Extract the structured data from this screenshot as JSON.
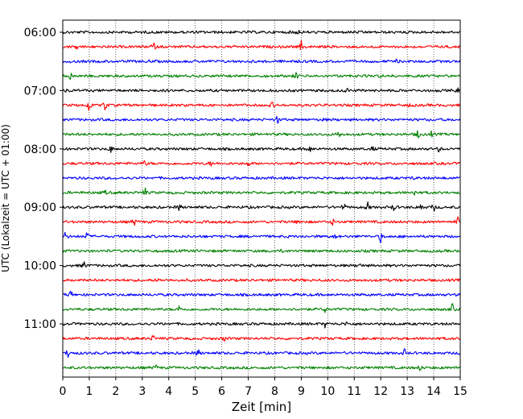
{
  "chart_data": {
    "type": "line",
    "title": "",
    "xlabel": "Zeit  [min]",
    "ylabel": "UTC (Lokalzeit = UTC + 01:00)",
    "xlim": [
      0,
      15
    ],
    "x_ticks": [
      0,
      1,
      2,
      3,
      4,
      5,
      6,
      7,
      8,
      9,
      10,
      11,
      12,
      13,
      14,
      15
    ],
    "x_tick_labels": [
      "0",
      "1",
      "2",
      "3",
      "4",
      "5",
      "6",
      "7",
      "8",
      "9",
      "10",
      "11",
      "12",
      "13",
      "14",
      "15"
    ],
    "grid": "vertical dotted",
    "trace_start_hour": 6.0,
    "trace_interval_min": 15,
    "y_tick_hours": [
      6,
      7,
      8,
      9,
      10,
      11
    ],
    "y_tick_labels": [
      "06:00",
      "07:00",
      "08:00",
      "09:00",
      "10:00",
      "11:00"
    ],
    "trace_colors": [
      "#000000",
      "#ff0000",
      "#0000ff",
      "#008000"
    ],
    "traces": [
      {
        "time": "06:00",
        "color": "#000000",
        "events": [
          [
            8.7,
            0.25
          ],
          [
            8.9,
            0.25
          ],
          [
            11.4,
            0.15
          ]
        ]
      },
      {
        "time": "06:15",
        "color": "#ff0000",
        "events": [
          [
            0.55,
            0.35
          ],
          [
            3.4,
            0.9
          ],
          [
            9.0,
            0.55
          ]
        ]
      },
      {
        "time": "06:30",
        "color": "#0000ff",
        "events": [
          [
            3.3,
            0.15
          ],
          [
            12.6,
            0.15
          ]
        ]
      },
      {
        "time": "06:45",
        "color": "#008000",
        "events": [
          [
            0.3,
            0.45
          ],
          [
            8.8,
            0.45
          ],
          [
            12.0,
            0.15
          ]
        ]
      },
      {
        "time": "07:00",
        "color": "#000000",
        "events": [
          [
            0.2,
            0.25
          ],
          [
            10.7,
            0.35
          ],
          [
            14.9,
            0.3
          ]
        ]
      },
      {
        "time": "07:15",
        "color": "#ff0000",
        "events": [
          [
            1.0,
            0.85
          ],
          [
            1.6,
            0.8
          ],
          [
            7.9,
            0.35
          ],
          [
            13.1,
            0.2
          ]
        ]
      },
      {
        "time": "07:30",
        "color": "#0000ff",
        "events": [
          [
            8.1,
            0.5
          ],
          [
            9.8,
            0.15
          ]
        ]
      },
      {
        "time": "07:45",
        "color": "#008000",
        "events": [
          [
            10.4,
            0.45
          ],
          [
            13.4,
            0.55
          ],
          [
            13.9,
            0.3
          ]
        ]
      },
      {
        "time": "08:00",
        "color": "#000000",
        "events": [
          [
            1.8,
            0.5
          ],
          [
            9.3,
            0.6
          ],
          [
            11.7,
            0.3
          ],
          [
            14.2,
            0.3
          ]
        ]
      },
      {
        "time": "08:15",
        "color": "#ff0000",
        "events": [
          [
            3.1,
            0.35
          ],
          [
            5.6,
            0.25
          ],
          [
            7.0,
            0.3
          ]
        ]
      },
      {
        "time": "08:30",
        "color": "#0000ff",
        "events": [
          [
            13.2,
            0.15
          ]
        ]
      },
      {
        "time": "08:45",
        "color": "#008000",
        "events": [
          [
            1.6,
            0.25
          ],
          [
            3.1,
            0.55
          ],
          [
            13.3,
            0.45
          ]
        ]
      },
      {
        "time": "09:00",
        "color": "#000000",
        "events": [
          [
            4.4,
            0.45
          ],
          [
            10.6,
            0.55
          ],
          [
            11.5,
            0.6
          ],
          [
            12.5,
            0.55
          ],
          [
            13.5,
            0.55
          ],
          [
            14.0,
            0.5
          ]
        ]
      },
      {
        "time": "09:15",
        "color": "#ff0000",
        "events": [
          [
            2.7,
            0.45
          ],
          [
            8.9,
            0.4
          ],
          [
            10.2,
            0.4
          ],
          [
            14.9,
            0.6
          ]
        ]
      },
      {
        "time": "09:30",
        "color": "#0000ff",
        "events": [
          [
            0.1,
            0.55
          ],
          [
            0.9,
            0.6
          ],
          [
            10.3,
            0.3
          ],
          [
            12.0,
            0.6
          ]
        ]
      },
      {
        "time": "09:45",
        "color": "#008000",
        "events": [
          [
            8.3,
            0.15
          ]
        ]
      },
      {
        "time": "10:00",
        "color": "#000000",
        "events": [
          [
            0.8,
            0.5
          ],
          [
            11.2,
            0.35
          ]
        ]
      },
      {
        "time": "10:15",
        "color": "#ff0000",
        "events": [
          [
            3.6,
            0.15
          ]
        ]
      },
      {
        "time": "10:30",
        "color": "#0000ff",
        "events": [
          [
            0.3,
            0.55
          ]
        ]
      },
      {
        "time": "10:45",
        "color": "#008000",
        "events": [
          [
            4.4,
            0.45
          ],
          [
            9.9,
            0.35
          ],
          [
            14.7,
            0.6
          ]
        ]
      },
      {
        "time": "11:00",
        "color": "#000000",
        "events": [
          [
            9.9,
            0.35
          ],
          [
            10.7,
            0.2
          ]
        ]
      },
      {
        "time": "11:15",
        "color": "#ff0000",
        "events": [
          [
            3.4,
            0.4
          ],
          [
            6.1,
            0.3
          ]
        ]
      },
      {
        "time": "11:30",
        "color": "#0000ff",
        "events": [
          [
            0.2,
            0.6
          ],
          [
            5.1,
            0.55
          ],
          [
            12.9,
            0.4
          ]
        ]
      },
      {
        "time": "11:45",
        "color": "#008000",
        "events": [
          [
            3.5,
            0.35
          ],
          [
            13.5,
            0.5
          ]
        ]
      }
    ]
  }
}
